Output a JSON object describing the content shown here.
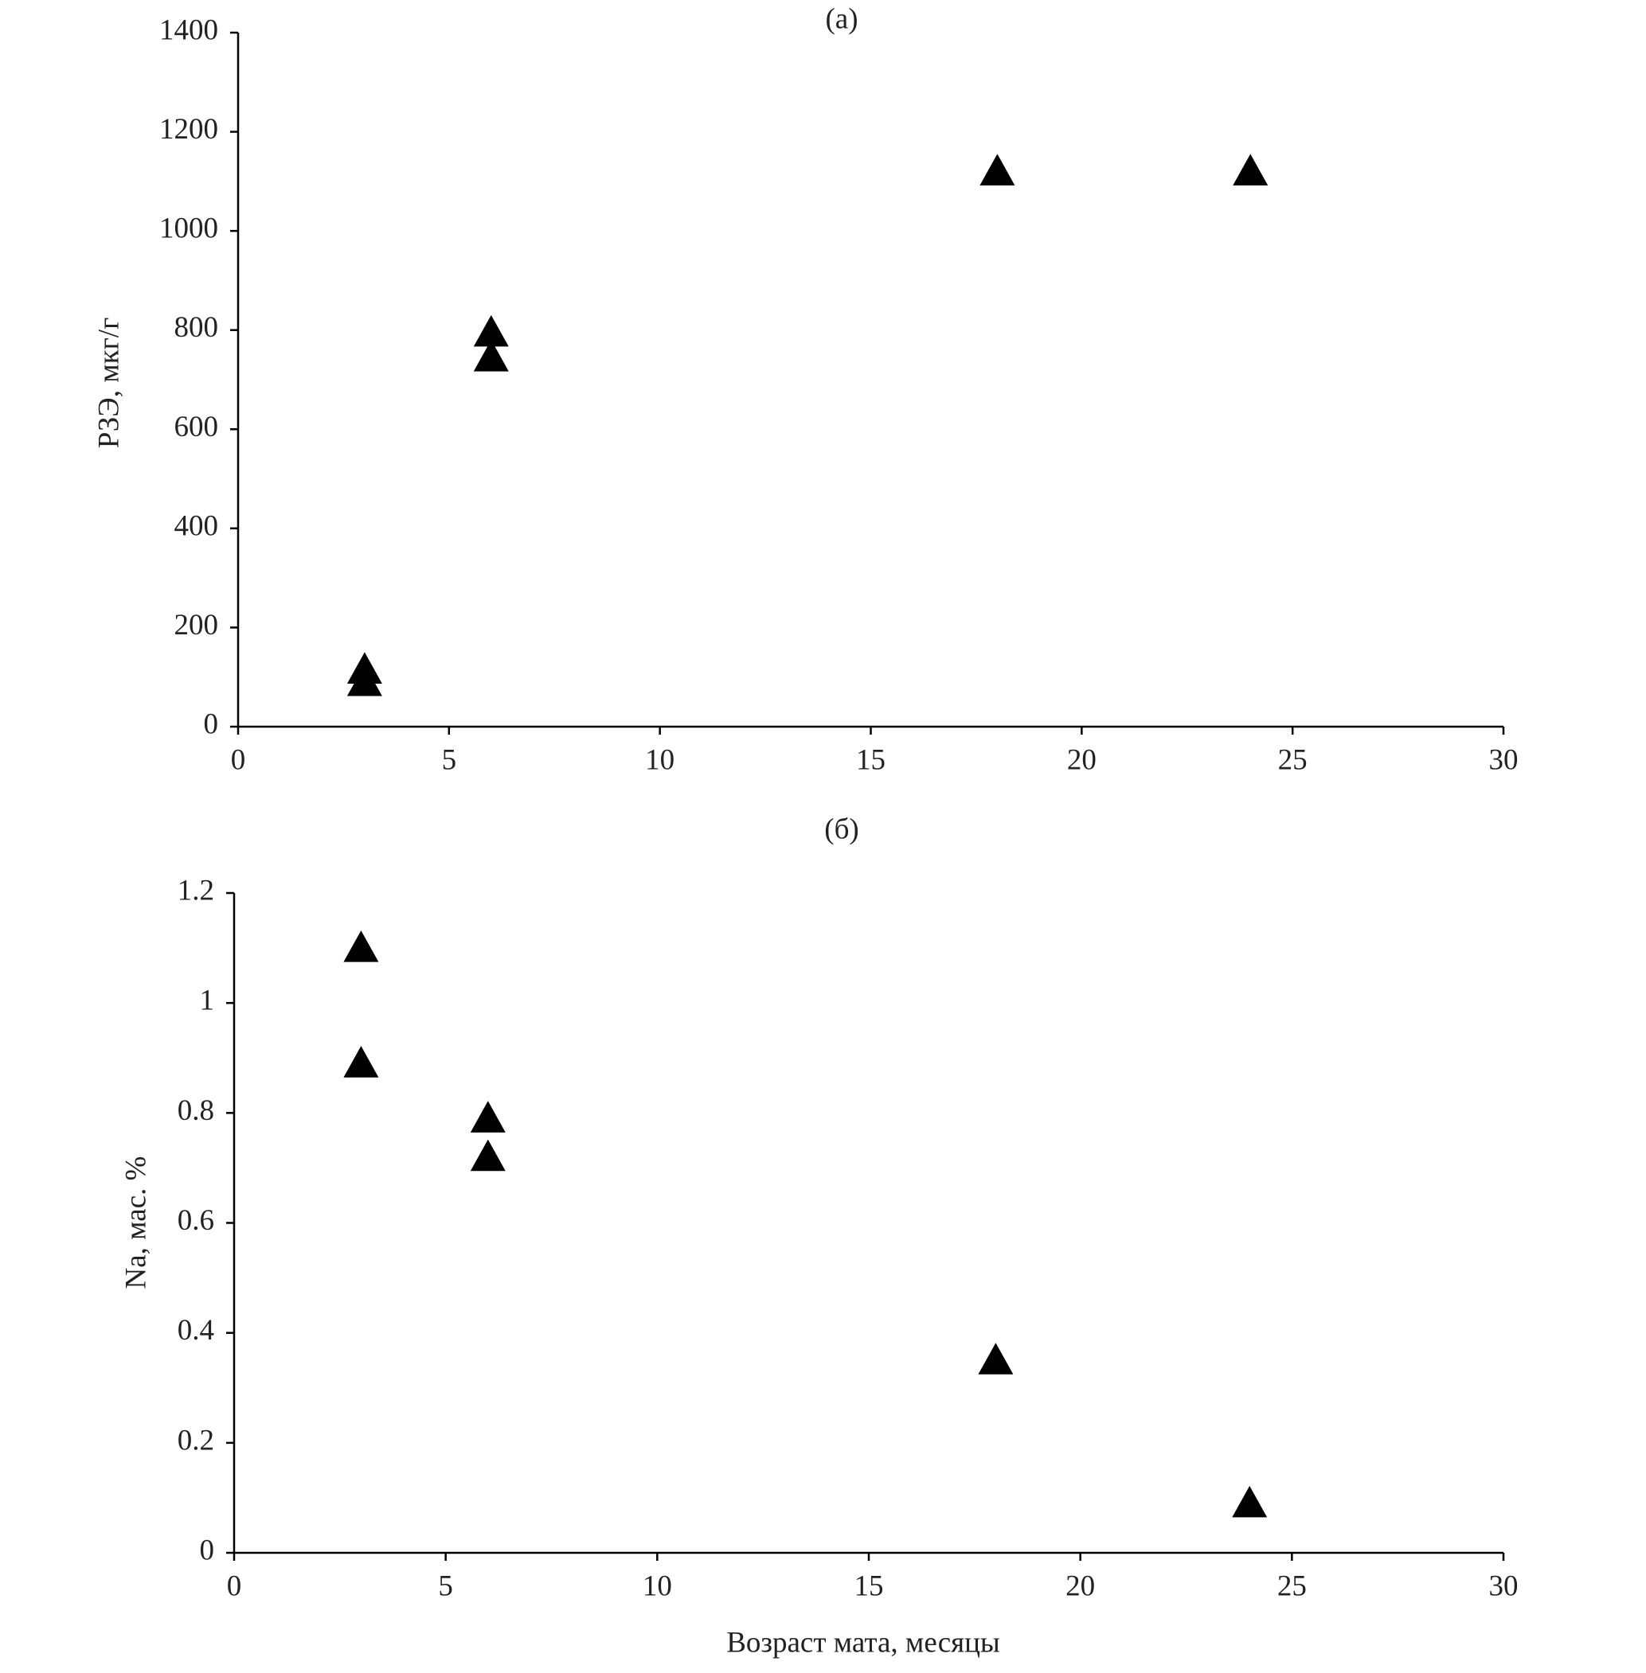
{
  "chart_data": [
    {
      "type": "scatter",
      "title": "(a)",
      "y_label": "РЗЭ, мкг/г",
      "x": [
        3,
        3,
        6,
        6,
        18,
        24
      ],
      "values": [
        115,
        90,
        795,
        745,
        1120,
        1120
      ],
      "color": "#000000",
      "marker": "triangle",
      "xlim": [
        0,
        30
      ],
      "xticks": [
        0,
        5,
        10,
        15,
        20,
        25,
        30
      ],
      "ylim": [
        0,
        1400
      ],
      "yticks": [
        0,
        200,
        400,
        600,
        800,
        1000,
        1200,
        1400
      ]
    },
    {
      "type": "scatter",
      "title": "(б)",
      "y_label": "Na, мас. %",
      "x_label": "Возраст мата, месяцы",
      "x": [
        3,
        3,
        6,
        6,
        18,
        24
      ],
      "values": [
        1.1,
        0.89,
        0.79,
        0.72,
        0.35,
        0.09
      ],
      "color": "#000000",
      "marker": "triangle",
      "xlim": [
        0,
        30
      ],
      "xticks": [
        0,
        5,
        10,
        15,
        20,
        25,
        30
      ],
      "ylim": [
        0,
        1.2
      ],
      "yticks": [
        0,
        0.2,
        0.4,
        0.6,
        0.8,
        1,
        1.2
      ]
    }
  ]
}
